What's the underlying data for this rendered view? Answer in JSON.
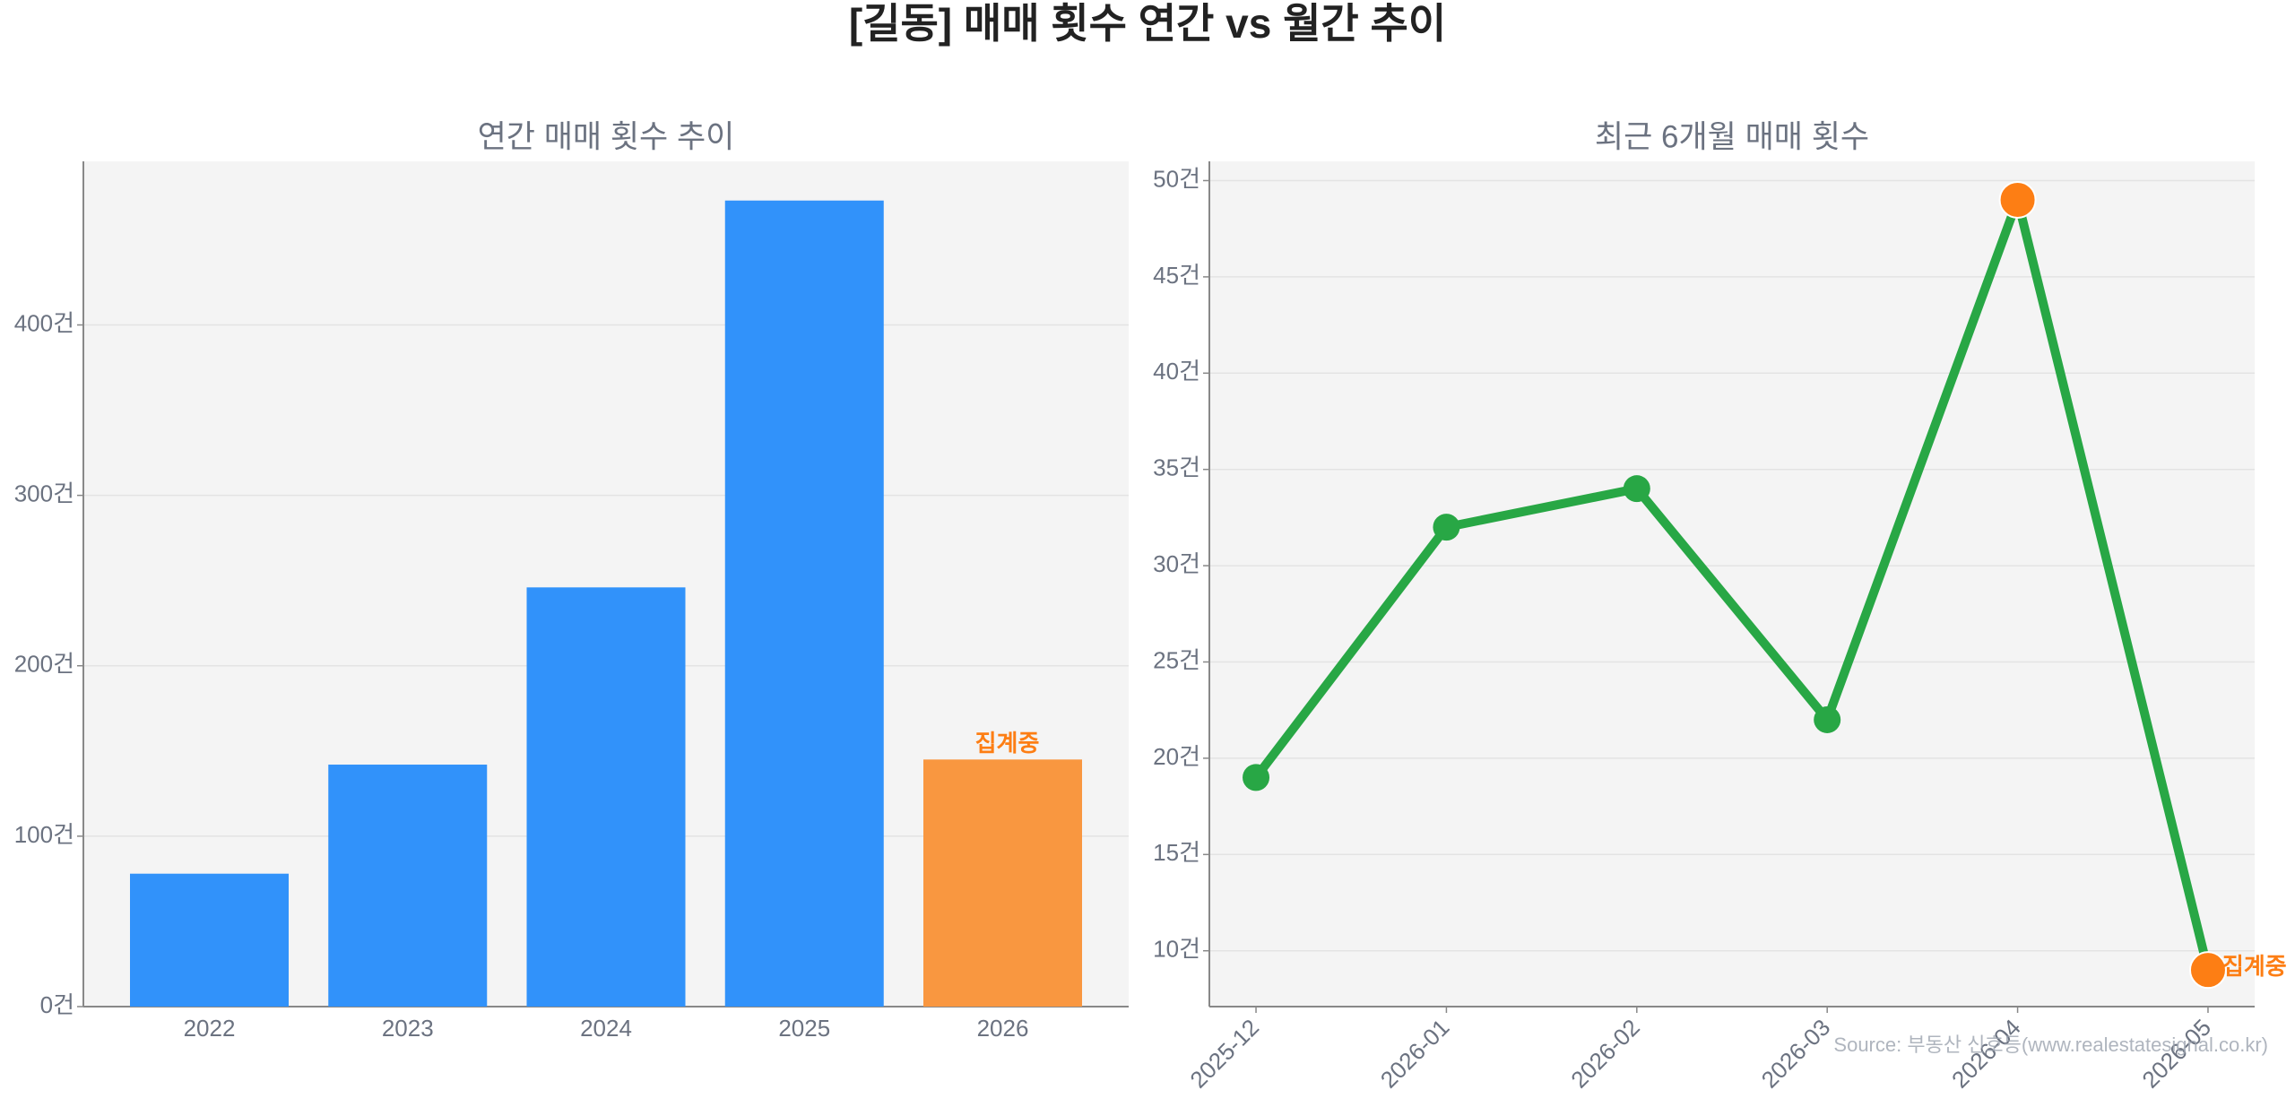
{
  "title": "[길동] 매매 횟수 연간 vs 월간 추이",
  "source": "Source: 부동산 신호등(www.realestatesignal.co.kr)",
  "chart_data": [
    {
      "type": "bar",
      "title": "연간 매매 횟수 추이",
      "categories": [
        "2022",
        "2023",
        "2024",
        "2025",
        "2026"
      ],
      "values": [
        78,
        142,
        246,
        473,
        145
      ],
      "colors": [
        "#3192fa",
        "#3192fa",
        "#3192fa",
        "#3192fa",
        "#f99740"
      ],
      "annotation": "집계중",
      "annotation_color": "#fd7e14",
      "ylim": [
        0,
        496
      ],
      "yticks": [
        {
          "value": 0,
          "label": "0건"
        },
        {
          "value": 100,
          "label": "100건"
        },
        {
          "value": 200,
          "label": "200건"
        },
        {
          "value": 300,
          "label": "300건"
        },
        {
          "value": 400,
          "label": "400건"
        }
      ],
      "grid": true
    },
    {
      "type": "line",
      "title": "최근 6개월 매매 횟수",
      "categories": [
        "2025-12",
        "2026-01",
        "2026-02",
        "2026-03",
        "2026-04",
        "2026-05"
      ],
      "values": [
        19,
        32,
        34,
        22,
        49,
        9
      ],
      "color": "#28a745",
      "marker_colors": [
        "#28a745",
        "#28a745",
        "#28a745",
        "#28a745",
        "#fd7e14",
        "#fd7e14"
      ],
      "annotation": "집계중",
      "annotation_color": "#fd7e14",
      "ylim": [
        7.1,
        51
      ],
      "yticks": [
        {
          "value": 10,
          "label": "10건"
        },
        {
          "value": 15,
          "label": "15건"
        },
        {
          "value": 20,
          "label": "20건"
        },
        {
          "value": 25,
          "label": "25건"
        },
        {
          "value": 30,
          "label": "30건"
        },
        {
          "value": 35,
          "label": "35건"
        },
        {
          "value": 40,
          "label": "40건"
        },
        {
          "value": 45,
          "label": "45건"
        },
        {
          "value": 50,
          "label": "50건"
        }
      ],
      "grid": true
    }
  ]
}
